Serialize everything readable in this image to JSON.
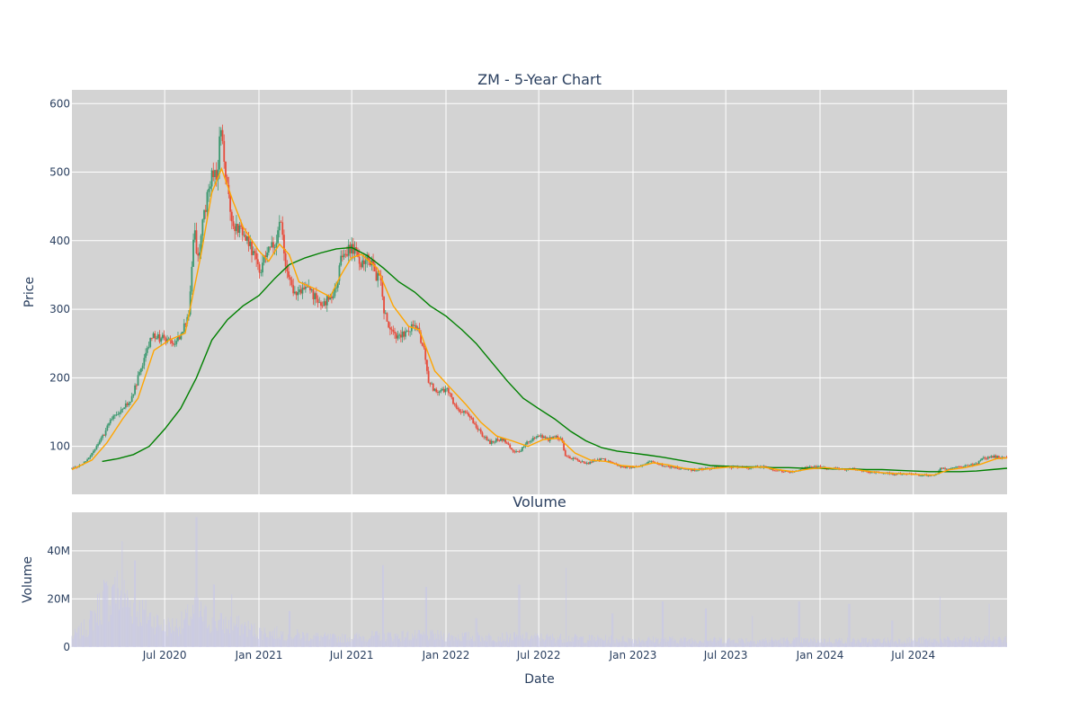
{
  "chart_data": [
    {
      "type": "candlestick",
      "title": "ZM - 5-Year Chart",
      "ylabel": "Price",
      "xlabel": "",
      "x_range": [
        "2020-01-02",
        "2024-12-31"
      ],
      "ylim": [
        30,
        620
      ],
      "y_ticks": [
        100,
        200,
        300,
        400,
        500,
        600
      ],
      "y_tick_labels": [
        "100",
        "200",
        "300",
        "400",
        "500",
        "600"
      ],
      "grid": true,
      "colors": {
        "background": "#d3d3d3",
        "grid": "#ffffff",
        "up": "#3d9970",
        "down": "#e74c3c",
        "ma_short": "#ffa500",
        "ma_long": "#008000"
      },
      "price_path": [
        [
          "2020-01-02",
          68
        ],
        [
          "2020-01-20",
          73
        ],
        [
          "2020-02-05",
          85
        ],
        [
          "2020-02-20",
          100
        ],
        [
          "2020-03-05",
          118
        ],
        [
          "2020-03-18",
          140
        ],
        [
          "2020-04-01",
          150
        ],
        [
          "2020-04-15",
          160
        ],
        [
          "2020-04-28",
          170
        ],
        [
          "2020-05-12",
          205
        ],
        [
          "2020-05-26",
          240
        ],
        [
          "2020-06-08",
          262
        ],
        [
          "2020-06-22",
          258
        ],
        [
          "2020-07-06",
          255
        ],
        [
          "2020-07-20",
          250
        ],
        [
          "2020-08-03",
          265
        ],
        [
          "2020-08-17",
          295
        ],
        [
          "2020-08-28",
          420
        ],
        [
          "2020-09-03",
          365
        ],
        [
          "2020-09-14",
          430
        ],
        [
          "2020-09-28",
          490
        ],
        [
          "2020-10-12",
          500
        ],
        [
          "2020-10-19",
          570
        ],
        [
          "2020-10-26",
          500
        ],
        [
          "2020-11-02",
          470
        ],
        [
          "2020-11-09",
          420
        ],
        [
          "2020-11-23",
          415
        ],
        [
          "2020-12-07",
          405
        ],
        [
          "2020-12-21",
          380
        ],
        [
          "2021-01-04",
          355
        ],
        [
          "2021-01-15",
          385
        ],
        [
          "2021-02-01",
          395
        ],
        [
          "2021-02-12",
          430
        ],
        [
          "2021-02-22",
          355
        ],
        [
          "2021-03-08",
          330
        ],
        [
          "2021-03-22",
          325
        ],
        [
          "2021-04-05",
          330
        ],
        [
          "2021-04-19",
          320
        ],
        [
          "2021-05-03",
          305
        ],
        [
          "2021-05-17",
          315
        ],
        [
          "2021-05-31",
          330
        ],
        [
          "2021-06-10",
          375
        ],
        [
          "2021-06-24",
          385
        ],
        [
          "2021-07-06",
          390
        ],
        [
          "2021-07-19",
          365
        ],
        [
          "2021-08-02",
          380
        ],
        [
          "2021-08-16",
          350
        ],
        [
          "2021-08-27",
          345
        ],
        [
          "2021-09-01",
          295
        ],
        [
          "2021-09-13",
          275
        ],
        [
          "2021-09-27",
          260
        ],
        [
          "2021-10-11",
          265
        ],
        [
          "2021-10-25",
          275
        ],
        [
          "2021-11-08",
          270
        ],
        [
          "2021-11-19",
          240
        ],
        [
          "2021-11-26",
          200
        ],
        [
          "2021-12-06",
          185
        ],
        [
          "2021-12-20",
          180
        ],
        [
          "2022-01-03",
          185
        ],
        [
          "2022-01-17",
          160
        ],
        [
          "2022-01-31",
          150
        ],
        [
          "2022-02-14",
          145
        ],
        [
          "2022-02-28",
          130
        ],
        [
          "2022-03-14",
          115
        ],
        [
          "2022-03-28",
          105
        ],
        [
          "2022-04-11",
          110
        ],
        [
          "2022-04-25",
          110
        ],
        [
          "2022-05-09",
          95
        ],
        [
          "2022-05-23",
          90
        ],
        [
          "2022-06-06",
          105
        ],
        [
          "2022-06-20",
          110
        ],
        [
          "2022-07-05",
          115
        ],
        [
          "2022-07-19",
          110
        ],
        [
          "2022-08-01",
          115
        ],
        [
          "2022-08-15",
          110
        ],
        [
          "2022-08-22",
          85
        ],
        [
          "2022-09-06",
          82
        ],
        [
          "2022-09-20",
          78
        ],
        [
          "2022-10-04",
          75
        ],
        [
          "2022-10-18",
          80
        ],
        [
          "2022-11-01",
          82
        ],
        [
          "2022-11-15",
          78
        ],
        [
          "2022-12-01",
          72
        ],
        [
          "2022-12-15",
          70
        ],
        [
          "2023-01-03",
          70
        ],
        [
          "2023-01-17",
          72
        ],
        [
          "2023-02-01",
          78
        ],
        [
          "2023-02-15",
          75
        ],
        [
          "2023-03-01",
          72
        ],
        [
          "2023-03-15",
          70
        ],
        [
          "2023-04-03",
          68
        ],
        [
          "2023-04-17",
          66
        ],
        [
          "2023-05-01",
          65
        ],
        [
          "2023-05-15",
          67
        ],
        [
          "2023-06-01",
          68
        ],
        [
          "2023-06-15",
          70
        ],
        [
          "2023-07-03",
          70
        ],
        [
          "2023-07-17",
          69
        ],
        [
          "2023-08-01",
          70
        ],
        [
          "2023-08-15",
          68
        ],
        [
          "2023-09-01",
          70
        ],
        [
          "2023-09-15",
          70
        ],
        [
          "2023-10-02",
          66
        ],
        [
          "2023-10-16",
          64
        ],
        [
          "2023-11-01",
          62
        ],
        [
          "2023-11-15",
          64
        ],
        [
          "2023-12-01",
          68
        ],
        [
          "2023-12-15",
          70
        ],
        [
          "2024-01-02",
          70
        ],
        [
          "2024-01-16",
          68
        ],
        [
          "2024-02-01",
          68
        ],
        [
          "2024-02-15",
          66
        ],
        [
          "2024-03-01",
          67
        ],
        [
          "2024-03-15",
          66
        ],
        [
          "2024-04-01",
          62
        ],
        [
          "2024-04-15",
          62
        ],
        [
          "2024-05-01",
          62
        ],
        [
          "2024-05-15",
          60
        ],
        [
          "2024-06-03",
          60
        ],
        [
          "2024-06-17",
          60
        ],
        [
          "2024-07-01",
          59
        ],
        [
          "2024-07-15",
          58
        ],
        [
          "2024-08-01",
          58
        ],
        [
          "2024-08-15",
          58
        ],
        [
          "2024-08-22",
          68
        ],
        [
          "2024-09-03",
          68
        ],
        [
          "2024-09-16",
          68
        ],
        [
          "2024-10-01",
          70
        ],
        [
          "2024-10-15",
          72
        ],
        [
          "2024-11-01",
          75
        ],
        [
          "2024-11-15",
          82
        ],
        [
          "2024-12-02",
          85
        ],
        [
          "2024-12-16",
          84
        ],
        [
          "2024-12-31",
          82
        ]
      ],
      "moving_average_short": [
        [
          "2020-01-02",
          66
        ],
        [
          "2020-02-10",
          80
        ],
        [
          "2020-03-10",
          105
        ],
        [
          "2020-04-10",
          140
        ],
        [
          "2020-05-10",
          170
        ],
        [
          "2020-06-10",
          240
        ],
        [
          "2020-07-10",
          255
        ],
        [
          "2020-08-10",
          265
        ],
        [
          "2020-09-10",
          380
        ],
        [
          "2020-10-01",
          470
        ],
        [
          "2020-10-20",
          505
        ],
        [
          "2020-11-10",
          460
        ],
        [
          "2020-12-01",
          420
        ],
        [
          "2021-01-01",
          385
        ],
        [
          "2021-01-20",
          370
        ],
        [
          "2021-02-10",
          395
        ],
        [
          "2021-03-01",
          380
        ],
        [
          "2021-03-20",
          340
        ],
        [
          "2021-04-20",
          330
        ],
        [
          "2021-05-20",
          318
        ],
        [
          "2021-06-10",
          350
        ],
        [
          "2021-06-30",
          375
        ],
        [
          "2021-07-20",
          380
        ],
        [
          "2021-08-20",
          360
        ],
        [
          "2021-09-20",
          305
        ],
        [
          "2021-10-20",
          275
        ],
        [
          "2021-11-10",
          270
        ],
        [
          "2021-12-10",
          210
        ],
        [
          "2022-01-10",
          185
        ],
        [
          "2022-02-10",
          160
        ],
        [
          "2022-03-10",
          135
        ],
        [
          "2022-04-10",
          115
        ],
        [
          "2022-05-10",
          108
        ],
        [
          "2022-06-10",
          100
        ],
        [
          "2022-07-10",
          110
        ],
        [
          "2022-08-10",
          112
        ],
        [
          "2022-09-10",
          90
        ],
        [
          "2022-10-10",
          80
        ],
        [
          "2022-11-10",
          78
        ],
        [
          "2022-12-10",
          72
        ],
        [
          "2023-01-10",
          70
        ],
        [
          "2023-02-10",
          76
        ],
        [
          "2023-03-10",
          73
        ],
        [
          "2023-04-10",
          68
        ],
        [
          "2023-05-10",
          66
        ],
        [
          "2023-06-10",
          68
        ],
        [
          "2023-07-10",
          70
        ],
        [
          "2023-08-10",
          69
        ],
        [
          "2023-09-10",
          70
        ],
        [
          "2023-10-10",
          66
        ],
        [
          "2023-11-10",
          63
        ],
        [
          "2023-12-10",
          67
        ],
        [
          "2024-01-10",
          69
        ],
        [
          "2024-02-10",
          67
        ],
        [
          "2024-03-10",
          66
        ],
        [
          "2024-04-10",
          63
        ],
        [
          "2024-05-10",
          61
        ],
        [
          "2024-06-10",
          60
        ],
        [
          "2024-07-10",
          59
        ],
        [
          "2024-08-10",
          58
        ],
        [
          "2024-09-10",
          66
        ],
        [
          "2024-10-10",
          69
        ],
        [
          "2024-11-10",
          74
        ],
        [
          "2024-12-10",
          82
        ],
        [
          "2024-12-31",
          83
        ]
      ],
      "moving_average_long": [
        [
          "2020-03-01",
          78
        ],
        [
          "2020-04-01",
          82
        ],
        [
          "2020-05-01",
          88
        ],
        [
          "2020-06-01",
          100
        ],
        [
          "2020-07-01",
          125
        ],
        [
          "2020-08-01",
          155
        ],
        [
          "2020-09-01",
          200
        ],
        [
          "2020-10-01",
          255
        ],
        [
          "2020-11-01",
          285
        ],
        [
          "2020-12-01",
          305
        ],
        [
          "2021-01-01",
          320
        ],
        [
          "2021-02-01",
          345
        ],
        [
          "2021-03-01",
          365
        ],
        [
          "2021-04-01",
          375
        ],
        [
          "2021-05-01",
          382
        ],
        [
          "2021-06-01",
          388
        ],
        [
          "2021-07-01",
          390
        ],
        [
          "2021-08-01",
          378
        ],
        [
          "2021-09-01",
          360
        ],
        [
          "2021-10-01",
          340
        ],
        [
          "2021-11-01",
          325
        ],
        [
          "2021-12-01",
          305
        ],
        [
          "2022-01-01",
          290
        ],
        [
          "2022-02-01",
          270
        ],
        [
          "2022-03-01",
          250
        ],
        [
          "2022-04-01",
          222
        ],
        [
          "2022-05-01",
          195
        ],
        [
          "2022-06-01",
          170
        ],
        [
          "2022-07-01",
          155
        ],
        [
          "2022-08-01",
          140
        ],
        [
          "2022-09-01",
          122
        ],
        [
          "2022-10-01",
          108
        ],
        [
          "2022-11-01",
          98
        ],
        [
          "2022-12-01",
          93
        ],
        [
          "2023-01-01",
          90
        ],
        [
          "2023-02-01",
          87
        ],
        [
          "2023-03-01",
          84
        ],
        [
          "2023-04-01",
          80
        ],
        [
          "2023-05-01",
          76
        ],
        [
          "2023-06-01",
          72
        ],
        [
          "2023-07-01",
          71
        ],
        [
          "2023-08-01",
          70
        ],
        [
          "2023-09-01",
          70
        ],
        [
          "2023-10-01",
          69
        ],
        [
          "2023-11-01",
          69
        ],
        [
          "2023-12-01",
          68
        ],
        [
          "2024-01-01",
          68
        ],
        [
          "2024-02-01",
          67
        ],
        [
          "2024-03-01",
          67
        ],
        [
          "2024-04-01",
          66
        ],
        [
          "2024-05-01",
          66
        ],
        [
          "2024-06-01",
          65
        ],
        [
          "2024-07-01",
          64
        ],
        [
          "2024-08-01",
          63
        ],
        [
          "2024-09-01",
          63
        ],
        [
          "2024-10-01",
          63
        ],
        [
          "2024-11-01",
          64
        ],
        [
          "2024-12-01",
          66
        ],
        [
          "2024-12-31",
          68
        ]
      ]
    },
    {
      "type": "bar",
      "title": "Volume",
      "ylabel": "Volume",
      "xlabel": "Date",
      "ylim": [
        0,
        56000000
      ],
      "y_ticks": [
        0,
        20000000,
        40000000
      ],
      "y_tick_labels": [
        "0",
        "20M",
        "40M"
      ],
      "x_ticks": [
        "2020-07-01",
        "2021-01-01",
        "2021-07-01",
        "2022-01-01",
        "2022-07-01",
        "2023-01-01",
        "2023-07-01",
        "2024-01-01",
        "2024-07-01"
      ],
      "x_tick_labels": [
        "Jul 2020",
        "Jan 2021",
        "Jul 2021",
        "Jan 2022",
        "Jul 2022",
        "Jan 2023",
        "Jul 2023",
        "Jan 2024",
        "Jul 2024"
      ],
      "grid": true,
      "colors": {
        "background": "#d3d3d3",
        "grid": "#ffffff",
        "bar": "#c8c8e8"
      },
      "volume_path": [
        [
          "2020-01-02",
          4000000
        ],
        [
          "2020-02-01",
          8000000
        ],
        [
          "2020-03-01",
          18000000
        ],
        [
          "2020-04-01",
          22000000
        ],
        [
          "2020-05-01",
          16000000
        ],
        [
          "2020-06-01",
          12000000
        ],
        [
          "2020-07-01",
          8000000
        ],
        [
          "2020-08-01",
          9000000
        ],
        [
          "2020-09-01",
          14000000
        ],
        [
          "2020-10-01",
          10000000
        ],
        [
          "2020-11-01",
          9000000
        ],
        [
          "2020-12-01",
          8000000
        ],
        [
          "2021-01-01",
          6000000
        ],
        [
          "2021-03-01",
          5000000
        ],
        [
          "2021-06-01",
          3500000
        ],
        [
          "2021-09-01",
          4500000
        ],
        [
          "2021-12-01",
          4500000
        ],
        [
          "2022-03-01",
          4000000
        ],
        [
          "2022-06-01",
          4000000
        ],
        [
          "2022-09-01",
          3500000
        ],
        [
          "2023-01-01",
          3000000
        ],
        [
          "2023-06-01",
          2800000
        ],
        [
          "2024-01-01",
          2600000
        ],
        [
          "2024-06-01",
          2600000
        ],
        [
          "2024-12-31",
          3000000
        ]
      ],
      "volume_spikes": [
        [
          "2020-03-04",
          28000000
        ],
        [
          "2020-03-23",
          26000000
        ],
        [
          "2020-04-09",
          44000000
        ],
        [
          "2020-05-04",
          36000000
        ],
        [
          "2020-06-02",
          12000000
        ],
        [
          "2020-09-01",
          54000000
        ],
        [
          "2020-10-05",
          26000000
        ],
        [
          "2020-11-09",
          22000000
        ],
        [
          "2021-03-02",
          15000000
        ],
        [
          "2021-08-31",
          34000000
        ],
        [
          "2021-11-23",
          25000000
        ],
        [
          "2022-03-01",
          12000000
        ],
        [
          "2022-05-24",
          26000000
        ],
        [
          "2022-08-23",
          33000000
        ],
        [
          "2022-11-22",
          14000000
        ],
        [
          "2023-02-28",
          19000000
        ],
        [
          "2023-05-23",
          16000000
        ],
        [
          "2023-08-22",
          13000000
        ],
        [
          "2023-11-21",
          19000000
        ],
        [
          "2024-02-27",
          18000000
        ],
        [
          "2024-05-21",
          11000000
        ],
        [
          "2024-08-22",
          21000000
        ],
        [
          "2024-11-26",
          18000000
        ]
      ]
    }
  ]
}
